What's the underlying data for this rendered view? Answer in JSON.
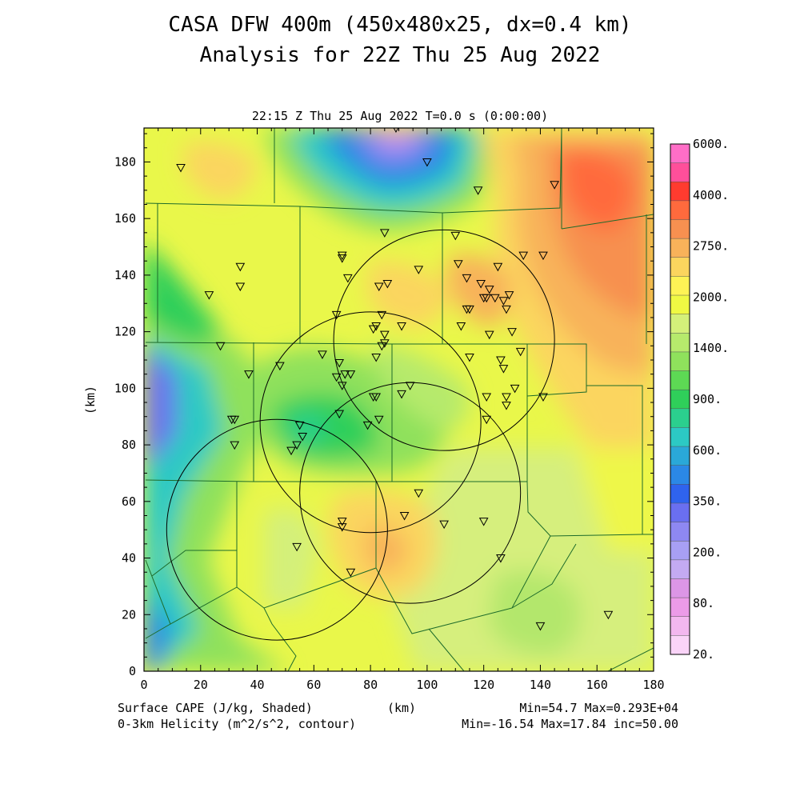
{
  "title_line1": "CASA DFW 400m (450x480x25, dx=0.4 km)",
  "title_line2": "Analysis for 22Z Thu 25 Aug 2022",
  "subtitle": "22:15 Z Thu 25 Aug 2022   T=0.0 s (0:00:00)",
  "axes": {
    "x_label": "(km)",
    "y_label": "(km)",
    "x_ticks": [
      "0",
      "20",
      "40",
      "60",
      "80",
      "100",
      "120",
      "140",
      "160",
      "180"
    ],
    "y_ticks": [
      "0",
      "20",
      "40",
      "60",
      "80",
      "100",
      "120",
      "140",
      "160",
      "180"
    ],
    "x_range_km": [
      0,
      180
    ],
    "y_range_km": [
      0,
      192
    ]
  },
  "colorbar": {
    "labels": [
      "6000.",
      "4000.",
      "2750.",
      "2000.",
      "1400.",
      "900.",
      "600.",
      "350.",
      "200.",
      "80.",
      "20."
    ],
    "colors": [
      "#ff6ec7",
      "#ff4f9a",
      "#ff3b2f",
      "#ff6a3d",
      "#f79050",
      "#f8b25a",
      "#fbd55e",
      "#fdf355",
      "#eff943",
      "#d4f07a",
      "#b6ea6c",
      "#8fe15c",
      "#5dd954",
      "#2fcf5a",
      "#2bcf8e",
      "#2cc9c4",
      "#2aa8d8",
      "#2b88e6",
      "#2f63ee",
      "#6a6ff0",
      "#8e88f2",
      "#a89ff4",
      "#c3aaf2",
      "#dc96e6",
      "#ec9be8",
      "#f3b7ef",
      "#fad4f8"
    ]
  },
  "footer": {
    "left1": "Surface CAPE (J/kg, Shaded)",
    "left2": "0-3km Helicity (m^2/s^2, contour)",
    "center": "(km)",
    "right1": "Min=54.7 Max=0.293E+04",
    "right2": "Min=-16.54 Max=17.84 inc=50.00"
  },
  "field": {
    "name": "Surface CAPE",
    "units": "J/kg",
    "min": 54.7,
    "max": 2930
  },
  "radar_rings_km": [
    {
      "cx": 106,
      "cy": 117,
      "r": 39
    },
    {
      "cx": 80,
      "cy": 88,
      "r": 39
    },
    {
      "cx": 94,
      "cy": 63,
      "r": 39
    },
    {
      "cx": 47,
      "cy": 50,
      "r": 39
    }
  ],
  "stations_km": [
    [
      89,
      192
    ],
    [
      100,
      180
    ],
    [
      13,
      178
    ],
    [
      118,
      170
    ],
    [
      145,
      172
    ],
    [
      85,
      155
    ],
    [
      110,
      154
    ],
    [
      70,
      147
    ],
    [
      70,
      146
    ],
    [
      134,
      147
    ],
    [
      141,
      147
    ],
    [
      34,
      143
    ],
    [
      97,
      142
    ],
    [
      111,
      144
    ],
    [
      125,
      143
    ],
    [
      72,
      139
    ],
    [
      114,
      139
    ],
    [
      119,
      137
    ],
    [
      83,
      136
    ],
    [
      86,
      137
    ],
    [
      34,
      136
    ],
    [
      23,
      133
    ],
    [
      122,
      135
    ],
    [
      124,
      132
    ],
    [
      120,
      132
    ],
    [
      121,
      132
    ],
    [
      127,
      131
    ],
    [
      129,
      133
    ],
    [
      68,
      126
    ],
    [
      84,
      126
    ],
    [
      114,
      128
    ],
    [
      115,
      128
    ],
    [
      128,
      128
    ],
    [
      91,
      122
    ],
    [
      81,
      121
    ],
    [
      82,
      122
    ],
    [
      112,
      122
    ],
    [
      122,
      119
    ],
    [
      130,
      120
    ],
    [
      85,
      119
    ],
    [
      85,
      116
    ],
    [
      84,
      115
    ],
    [
      133,
      113
    ],
    [
      63,
      112
    ],
    [
      82,
      111
    ],
    [
      115,
      111
    ],
    [
      126,
      110
    ],
    [
      27,
      115
    ],
    [
      48,
      108
    ],
    [
      69,
      109
    ],
    [
      127,
      107
    ],
    [
      37,
      105
    ],
    [
      68,
      104
    ],
    [
      71,
      105
    ],
    [
      73,
      105
    ],
    [
      94,
      101
    ],
    [
      70,
      101
    ],
    [
      131,
      100
    ],
    [
      128,
      97
    ],
    [
      141,
      97
    ],
    [
      121,
      97
    ],
    [
      81,
      97
    ],
    [
      91,
      98
    ],
    [
      82,
      97
    ],
    [
      128,
      94
    ],
    [
      69,
      91
    ],
    [
      31,
      89
    ],
    [
      32,
      89
    ],
    [
      83,
      89
    ],
    [
      121,
      89
    ],
    [
      79,
      87
    ],
    [
      55,
      87
    ],
    [
      56,
      83
    ],
    [
      32,
      80
    ],
    [
      54,
      80
    ],
    [
      52,
      78
    ],
    [
      97,
      63
    ],
    [
      92,
      55
    ],
    [
      70,
      53
    ],
    [
      120,
      53
    ],
    [
      70,
      51
    ],
    [
      106,
      52
    ],
    [
      54,
      44
    ],
    [
      126,
      40
    ],
    [
      73,
      35
    ],
    [
      164,
      20
    ],
    [
      140,
      16
    ]
  ]
}
